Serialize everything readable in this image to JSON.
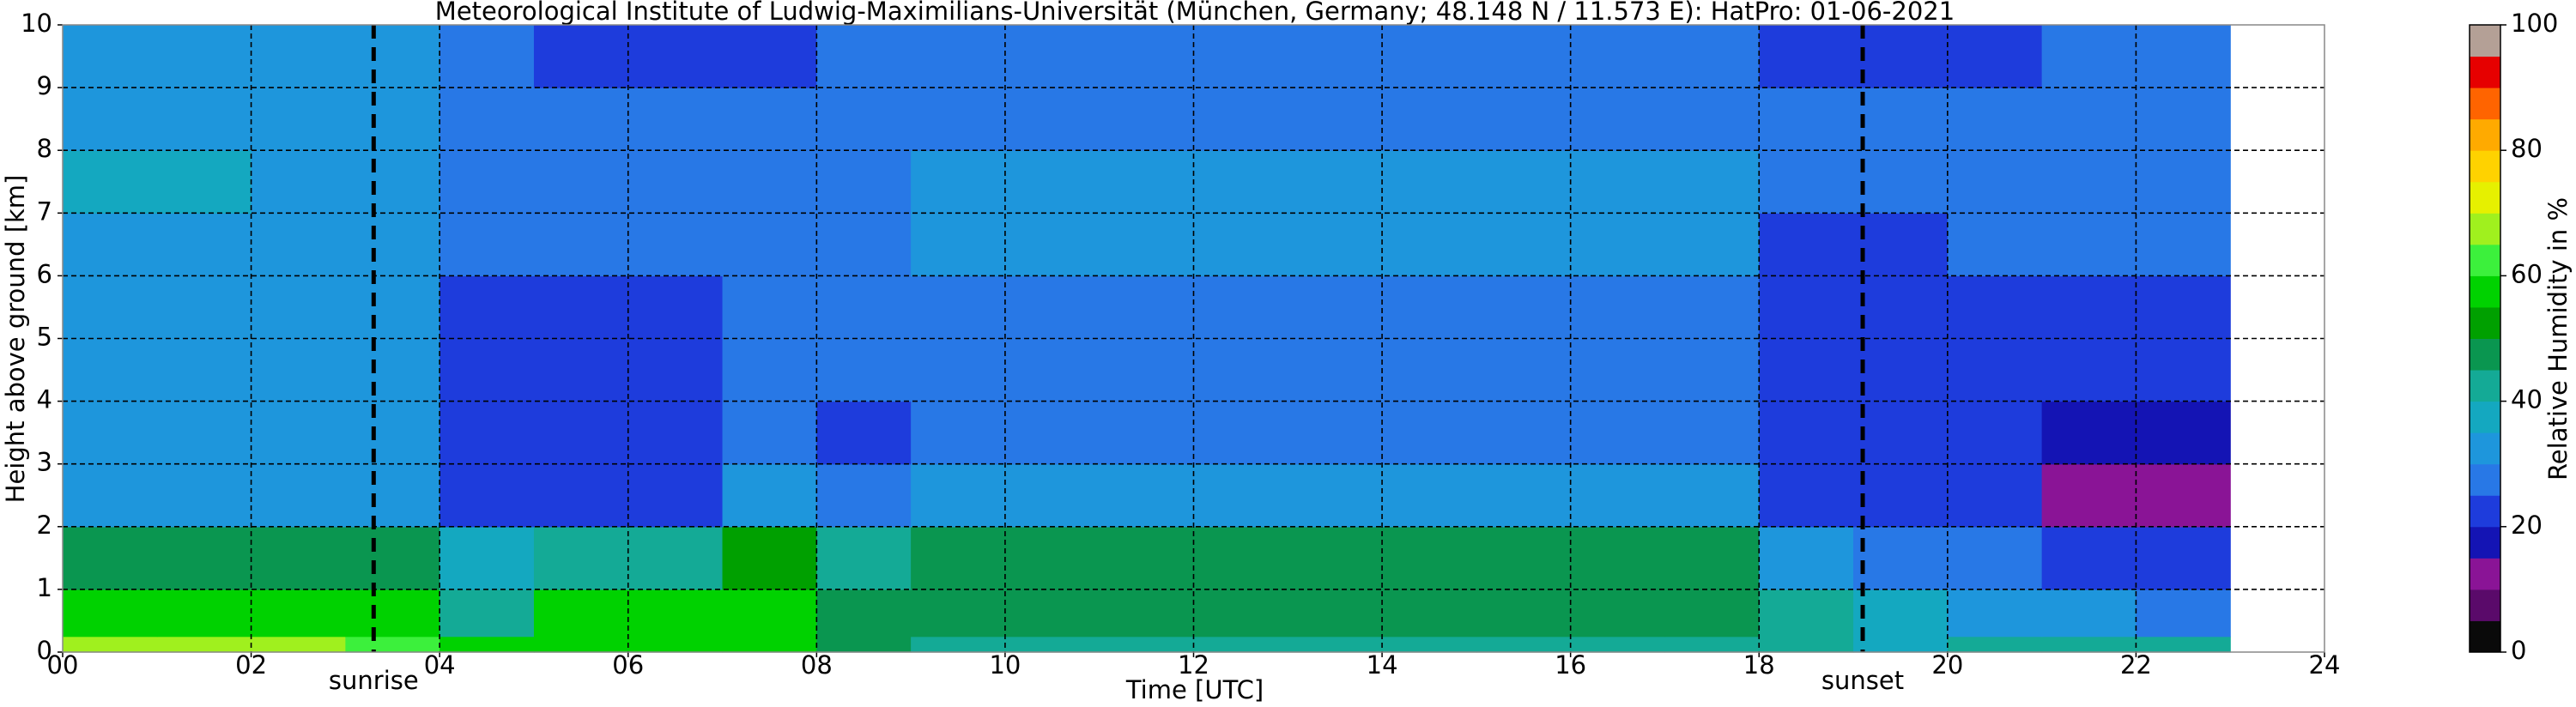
{
  "chart_data": {
    "type": "heatmap",
    "title": "Meteorological Institute of Ludwig-Maximilians-Universität (München, Germany; 48.148 N / 11.573 E):    HatPro: 01-06-2021",
    "x_label": "Time [UTC]",
    "y_label": "Height above ground [km]",
    "colorbar_label": "Relative Humidity in %",
    "xlim": [
      0,
      24
    ],
    "ylim": [
      0,
      10
    ],
    "xticks": [
      {
        "value": 0,
        "label": "00"
      },
      {
        "value": 2,
        "label": "02"
      },
      {
        "value": 4,
        "label": "04"
      },
      {
        "value": 6,
        "label": "06"
      },
      {
        "value": 8,
        "label": "08"
      },
      {
        "value": 10,
        "label": "10"
      },
      {
        "value": 12,
        "label": "12"
      },
      {
        "value": 14,
        "label": "14"
      },
      {
        "value": 16,
        "label": "16"
      },
      {
        "value": 18,
        "label": "18"
      },
      {
        "value": 20,
        "label": "20"
      },
      {
        "value": 22,
        "label": "22"
      },
      {
        "value": 24,
        "label": "24"
      }
    ],
    "yticks": [
      0,
      1,
      2,
      3,
      4,
      5,
      6,
      7,
      8,
      9,
      10
    ],
    "grid": true,
    "clim": [
      0,
      100
    ],
    "cticks": [
      0,
      20,
      40,
      60,
      80,
      100
    ],
    "colormap": [
      "#0a0a0a",
      "#5a0a6a",
      "#8a1496",
      "#1414b4",
      "#1e3cdc",
      "#2878e6",
      "#1e96dc",
      "#14a8c0",
      "#14aa96",
      "#0a9650",
      "#00a000",
      "#00d200",
      "#3cf03c",
      "#a0f01e",
      "#e6f000",
      "#ffd200",
      "#ffaa00",
      "#ff6400",
      "#e60000",
      "#b4a096"
    ],
    "x_edges": [
      0,
      1,
      2,
      3,
      4,
      5,
      6,
      7,
      8,
      9,
      10,
      11,
      12,
      13,
      14,
      15,
      16,
      17,
      18,
      19,
      20,
      21,
      22,
      23
    ],
    "y_edges": [
      0,
      0.25,
      1,
      2,
      3,
      4,
      5,
      6,
      7,
      8,
      9,
      10
    ],
    "z": [
      [
        65,
        65,
        65,
        60,
        58,
        55,
        55,
        58,
        45,
        40,
        40,
        40,
        40,
        40,
        40,
        40,
        40,
        40,
        40,
        38,
        40,
        42,
        42
      ],
      [
        55,
        55,
        55,
        55,
        42,
        55,
        56,
        58,
        45,
        47,
        47,
        47,
        47,
        47,
        47,
        47,
        47,
        47,
        40,
        36,
        33,
        30,
        27
      ],
      [
        48,
        48,
        48,
        46,
        36,
        40,
        44,
        52,
        40,
        47,
        47,
        47,
        47,
        47,
        47,
        47,
        47,
        47,
        32,
        26,
        25,
        22,
        20
      ],
      [
        33,
        33,
        33,
        32,
        22,
        22,
        22,
        30,
        25,
        30,
        30,
        30,
        30,
        30,
        30,
        30,
        30,
        30,
        22,
        22,
        20,
        14,
        13
      ],
      [
        30,
        30,
        30,
        30,
        20,
        20,
        20,
        29,
        24,
        28,
        28,
        28,
        28,
        27,
        27,
        28,
        28,
        28,
        20,
        20,
        20,
        19,
        18
      ],
      [
        30,
        30,
        30,
        30,
        20,
        20,
        20,
        29,
        25,
        28,
        28,
        28,
        28,
        26,
        26,
        28,
        28,
        28,
        21,
        21,
        21,
        21,
        21
      ],
      [
        31,
        31,
        31,
        31,
        24,
        24,
        24,
        29,
        27,
        29,
        29,
        29,
        29,
        29,
        29,
        29,
        29,
        29,
        22,
        22,
        22,
        24,
        24
      ],
      [
        33,
        33,
        33,
        32,
        27,
        27,
        27,
        29,
        29,
        30,
        30,
        30,
        30,
        30,
        30,
        30,
        30,
        30,
        24,
        23,
        26,
        27,
        27
      ],
      [
        35,
        35,
        34,
        33,
        29,
        28,
        28,
        28,
        28,
        30,
        30,
        30,
        30,
        30,
        30,
        30,
        30,
        30,
        25,
        25,
        27,
        28,
        29
      ],
      [
        33,
        33,
        33,
        32,
        28,
        27,
        27,
        27,
        27,
        29,
        29,
        29,
        29,
        29,
        29,
        29,
        29,
        29,
        26,
        26,
        27,
        28,
        28
      ],
      [
        31,
        31,
        31,
        30,
        27,
        24,
        24,
        24,
        25,
        28,
        28,
        28,
        28,
        28,
        28,
        28,
        28,
        28,
        24,
        24,
        24,
        27,
        27
      ]
    ],
    "annotations": [
      {
        "text": "sunrise",
        "x": 3.3
      },
      {
        "text": "sunset",
        "x": 19.1
      }
    ]
  }
}
